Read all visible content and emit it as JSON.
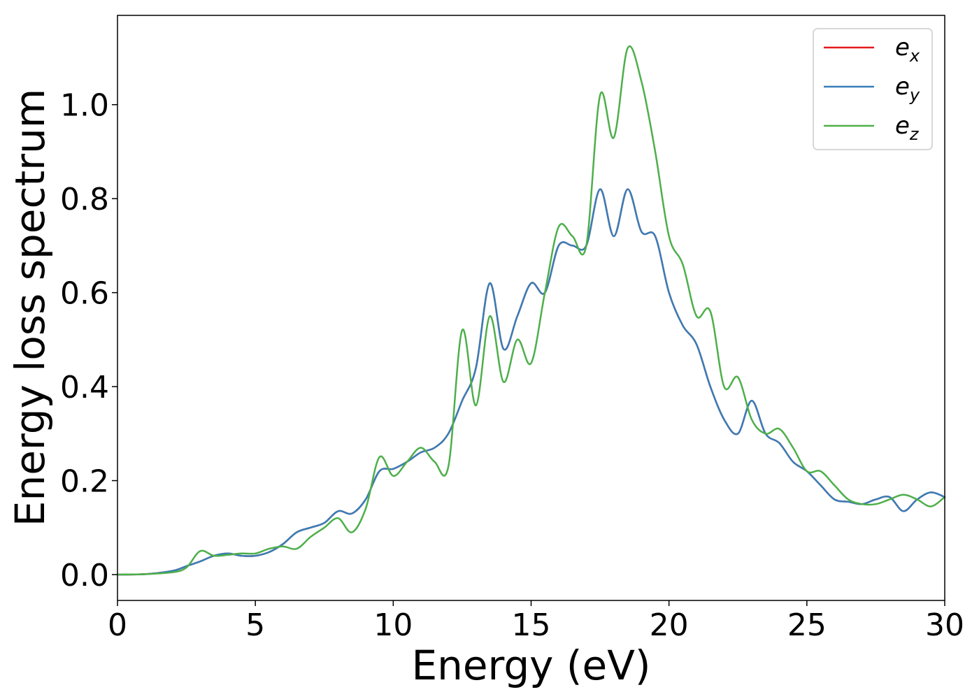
{
  "chart_data": {
    "type": "line",
    "xlabel": "Energy (eV)",
    "ylabel": "Energy loss spectrum",
    "xlim": [
      0,
      30
    ],
    "ylim": [
      -0.055,
      1.19
    ],
    "xticks": [
      "0",
      "5",
      "10",
      "15",
      "20",
      "25",
      "30"
    ],
    "yticks": [
      "0.0",
      "0.2",
      "0.4",
      "0.6",
      "0.8",
      "1.0"
    ],
    "grid": false,
    "legend_position": "top-right",
    "series": [
      {
        "name": "e_x",
        "base": "e",
        "sub": "x",
        "color": "#e41a1c",
        "x": [
          0,
          1,
          2,
          2.5,
          3,
          3.5,
          4,
          4.5,
          5,
          5.5,
          6,
          6.5,
          7,
          7.5,
          8,
          8.5,
          9,
          9.5,
          10,
          10.5,
          11,
          11.5,
          12,
          12.5,
          13,
          13.5,
          14,
          14.5,
          15,
          15.5,
          16,
          16.5,
          17,
          17.5,
          18,
          18.5,
          19,
          19.5,
          20,
          20.5,
          21,
          21.5,
          22,
          22.5,
          23,
          23.5,
          24,
          24.5,
          25,
          25.5,
          26,
          26.5,
          27,
          27.5,
          28,
          28.5,
          29,
          29.5,
          30
        ],
        "y": [
          0,
          0.001,
          0.008,
          0.018,
          0.028,
          0.04,
          0.045,
          0.04,
          0.04,
          0.048,
          0.065,
          0.09,
          0.1,
          0.11,
          0.135,
          0.13,
          0.16,
          0.22,
          0.225,
          0.24,
          0.26,
          0.27,
          0.3,
          0.37,
          0.44,
          0.62,
          0.48,
          0.55,
          0.62,
          0.6,
          0.7,
          0.7,
          0.7,
          0.82,
          0.72,
          0.82,
          0.73,
          0.72,
          0.6,
          0.53,
          0.49,
          0.4,
          0.33,
          0.3,
          0.37,
          0.3,
          0.28,
          0.24,
          0.22,
          0.19,
          0.16,
          0.155,
          0.15,
          0.16,
          0.165,
          0.135,
          0.16,
          0.175,
          0.165
        ]
      },
      {
        "name": "e_y",
        "base": "e",
        "sub": "y",
        "color": "#377eb8",
        "x": [
          0,
          1,
          2,
          2.5,
          3,
          3.5,
          4,
          4.5,
          5,
          5.5,
          6,
          6.5,
          7,
          7.5,
          8,
          8.5,
          9,
          9.5,
          10,
          10.5,
          11,
          11.5,
          12,
          12.5,
          13,
          13.5,
          14,
          14.5,
          15,
          15.5,
          16,
          16.5,
          17,
          17.5,
          18,
          18.5,
          19,
          19.5,
          20,
          20.5,
          21,
          21.5,
          22,
          22.5,
          23,
          23.5,
          24,
          24.5,
          25,
          25.5,
          26,
          26.5,
          27,
          27.5,
          28,
          28.5,
          29,
          29.5,
          30
        ],
        "y": [
          0,
          0.001,
          0.008,
          0.018,
          0.028,
          0.04,
          0.045,
          0.04,
          0.04,
          0.048,
          0.065,
          0.09,
          0.1,
          0.11,
          0.135,
          0.13,
          0.16,
          0.22,
          0.225,
          0.24,
          0.26,
          0.27,
          0.3,
          0.37,
          0.44,
          0.62,
          0.48,
          0.55,
          0.62,
          0.6,
          0.7,
          0.7,
          0.7,
          0.82,
          0.72,
          0.82,
          0.73,
          0.72,
          0.6,
          0.53,
          0.49,
          0.4,
          0.33,
          0.3,
          0.37,
          0.3,
          0.28,
          0.24,
          0.22,
          0.19,
          0.16,
          0.155,
          0.15,
          0.16,
          0.165,
          0.135,
          0.16,
          0.175,
          0.165
        ]
      },
      {
        "name": "e_z",
        "base": "e",
        "sub": "z",
        "color": "#4daf4a",
        "x": [
          0,
          1,
          2,
          2.5,
          3,
          3.5,
          4,
          4.5,
          5,
          5.5,
          6,
          6.5,
          7,
          7.5,
          8,
          8.5,
          9,
          9.5,
          10,
          10.5,
          11,
          11.5,
          12,
          12.5,
          13,
          13.5,
          14,
          14.5,
          15,
          15.5,
          16,
          16.5,
          17,
          17.5,
          18,
          18.5,
          19,
          19.5,
          20,
          20.5,
          21,
          21.5,
          22,
          22.5,
          23,
          23.5,
          24,
          24.5,
          25,
          25.5,
          26,
          26.5,
          27,
          27.5,
          28,
          28.5,
          29,
          29.5,
          30
        ],
        "y": [
          0,
          0.001,
          0.005,
          0.015,
          0.05,
          0.04,
          0.042,
          0.045,
          0.045,
          0.055,
          0.06,
          0.055,
          0.08,
          0.1,
          0.12,
          0.09,
          0.14,
          0.25,
          0.21,
          0.24,
          0.27,
          0.24,
          0.23,
          0.52,
          0.36,
          0.55,
          0.41,
          0.5,
          0.45,
          0.6,
          0.74,
          0.72,
          0.7,
          1.02,
          0.93,
          1.12,
          1.05,
          0.9,
          0.72,
          0.66,
          0.55,
          0.56,
          0.4,
          0.42,
          0.33,
          0.3,
          0.31,
          0.27,
          0.22,
          0.22,
          0.19,
          0.16,
          0.15,
          0.15,
          0.16,
          0.17,
          0.16,
          0.145,
          0.165
        ]
      }
    ]
  }
}
